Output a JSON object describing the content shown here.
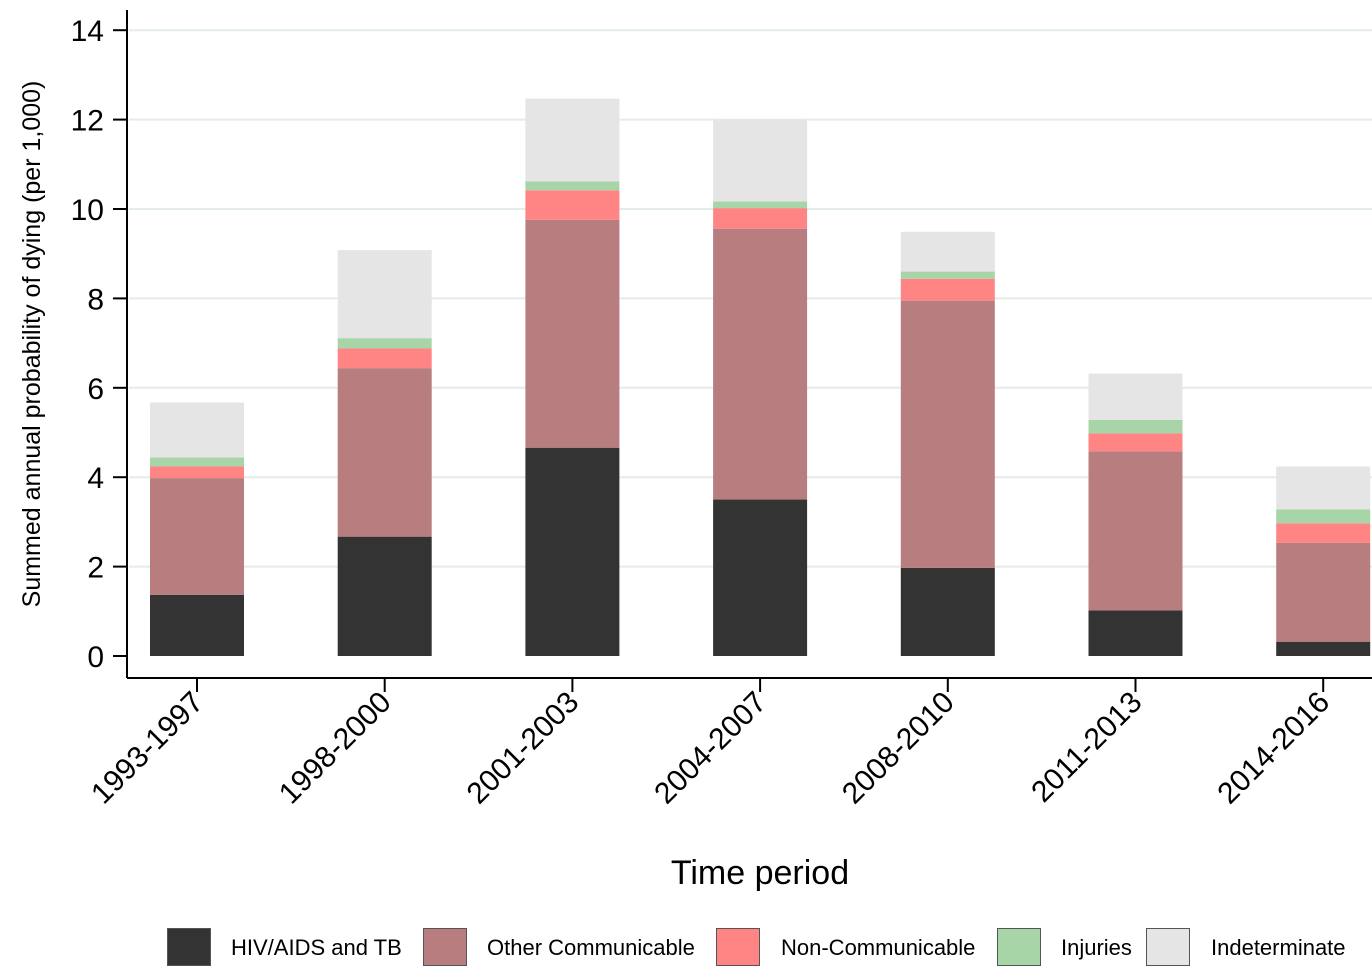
{
  "chart_data": {
    "type": "bar",
    "stacked": true,
    "title": "",
    "xlabel": "Time period",
    "ylabel": "Summed annual probability of dying (per 1,000)",
    "ylim": [
      0,
      14.5
    ],
    "yticks": [
      "0",
      "2",
      "4",
      "6",
      "8",
      "10",
      "12",
      "14"
    ],
    "grid": true,
    "legend_position": "bottom",
    "categories": [
      "1993-1997",
      "1998-2000",
      "2001-2003",
      "2004-2007",
      "2008-2010",
      "2011-2013",
      "2014-2016"
    ],
    "series": [
      {
        "name": "HIV/AIDS and TB",
        "color": "#333333",
        "values": [
          1.37,
          2.67,
          4.66,
          3.5,
          1.97,
          1.02,
          0.32
        ]
      },
      {
        "name": "Other Communicable",
        "color": "#b87d7f",
        "values": [
          2.61,
          3.77,
          5.1,
          6.06,
          5.98,
          3.56,
          2.21
        ]
      },
      {
        "name": "Non-Communicable",
        "color": "#ff8585",
        "values": [
          0.26,
          0.44,
          0.66,
          0.46,
          0.49,
          0.4,
          0.44
        ]
      },
      {
        "name": "Injuries",
        "color": "#a8d5a8",
        "values": [
          0.2,
          0.23,
          0.2,
          0.15,
          0.16,
          0.3,
          0.31
        ]
      },
      {
        "name": "Indeterminate",
        "color": "#e5e5e5",
        "values": [
          1.23,
          1.97,
          1.85,
          1.83,
          0.89,
          1.04,
          0.96
        ]
      }
    ]
  }
}
